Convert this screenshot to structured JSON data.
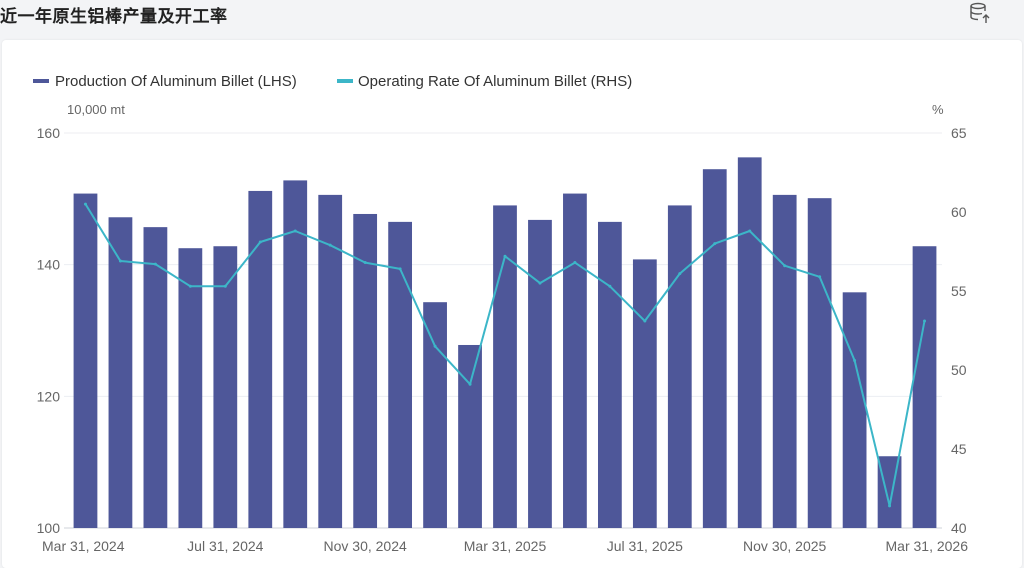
{
  "page": {
    "title": "近一年原生铝棒产量及开工率",
    "export_icon": "database-export-icon"
  },
  "chart_data": {
    "type": "bar",
    "x": [
      "2024-03-31",
      "2024-04-30",
      "2024-05-31",
      "2024-06-30",
      "2024-07-31",
      "2024-08-31",
      "2024-09-30",
      "2024-10-31",
      "2024-11-30",
      "2024-12-31",
      "2025-01-31",
      "2025-02-28",
      "2025-03-31",
      "2025-04-30",
      "2025-05-31",
      "2025-06-30",
      "2025-07-31",
      "2025-08-31",
      "2025-09-30",
      "2025-10-31",
      "2025-11-30",
      "2025-12-31",
      "2026-01-31",
      "2026-02-28",
      "2026-03-31"
    ],
    "x_tick_labels": [
      "Mar 31, 2024",
      "Jul 31, 2024",
      "Nov 30, 2024",
      "Mar 31, 2025",
      "Jul 31, 2025",
      "Nov 30, 2025",
      "Mar 31, 2026"
    ],
    "series": [
      {
        "name": "Production Of Aluminum Billet (LHS)",
        "type": "bar",
        "axis": "left",
        "color": "#4e5799",
        "values": [
          150.8,
          147.2,
          145.7,
          142.5,
          142.8,
          151.2,
          152.8,
          150.6,
          147.7,
          146.5,
          134.3,
          127.8,
          149.0,
          146.8,
          150.8,
          146.5,
          140.8,
          149.0,
          154.5,
          156.3,
          150.6,
          150.1,
          135.8,
          110.9,
          142.8
        ]
      },
      {
        "name": "Operating Rate Of Aluminum Billet (RHS)",
        "type": "line",
        "axis": "right",
        "color": "#3cb6c8",
        "values": [
          60.5,
          56.9,
          56.7,
          55.3,
          55.3,
          58.1,
          58.8,
          57.9,
          56.8,
          56.4,
          51.5,
          49.1,
          57.2,
          55.5,
          56.8,
          55.3,
          53.1,
          56.1,
          58.0,
          58.8,
          56.6,
          55.9,
          50.6,
          41.4,
          53.1
        ]
      }
    ],
    "left_axis": {
      "unit": "10,000 mt",
      "min": 100,
      "max": 160,
      "ticks": [
        100,
        120,
        140,
        160
      ]
    },
    "right_axis": {
      "unit": "%",
      "min": 40,
      "max": 65,
      "ticks": [
        40,
        45,
        50,
        55,
        60,
        65
      ]
    },
    "legend_position": "top-left",
    "grid": true
  }
}
